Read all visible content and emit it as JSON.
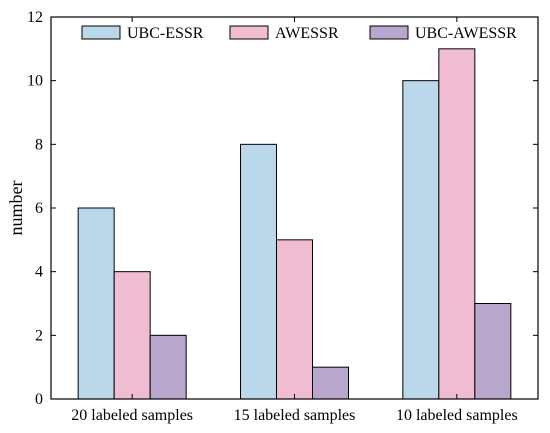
{
  "chart_data": {
    "type": "bar",
    "title": "",
    "xlabel": "",
    "ylabel": "number",
    "ylim": [
      0,
      12
    ],
    "yticks": [
      0,
      2,
      4,
      6,
      8,
      10,
      12
    ],
    "grid": false,
    "legend_position": "top",
    "categories": [
      "20 labeled samples",
      "15 labeled samples",
      "10 labeled samples"
    ],
    "series": [
      {
        "name": "UBC-ESSR",
        "color": "#bad8ea",
        "values": [
          6,
          8,
          10
        ]
      },
      {
        "name": "AWESSR",
        "color": "#f0bcd2",
        "values": [
          4,
          5,
          11
        ]
      },
      {
        "name": "UBC-AWESSR",
        "color": "#b8a6cc",
        "values": [
          2,
          1,
          3
        ]
      }
    ]
  }
}
